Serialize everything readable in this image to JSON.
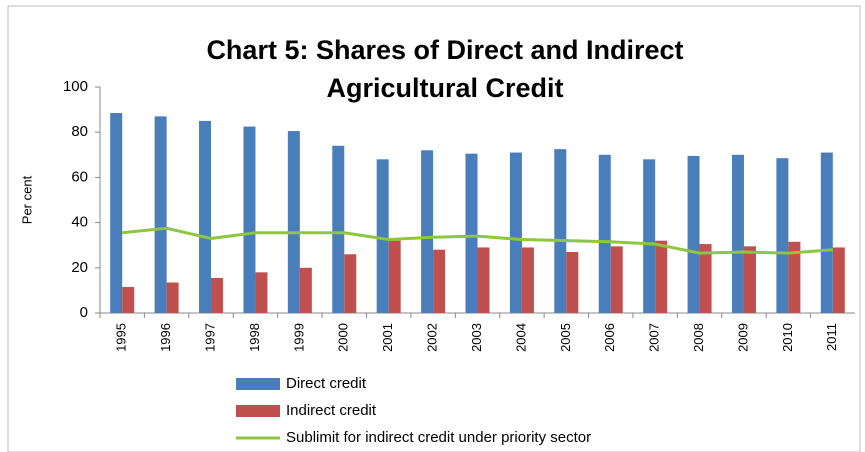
{
  "chart_data": {
    "type": "bar",
    "title_lines": [
      "Chart 5: Shares of Direct and Indirect",
      "Agricultural Credit"
    ],
    "y_label": "Per cent",
    "categories": [
      "1995",
      "1996",
      "1997",
      "1998",
      "1999",
      "2000",
      "2001",
      "2002",
      "2003",
      "2004",
      "2005",
      "2006",
      "2007",
      "2008",
      "2009",
      "2010",
      "2011"
    ],
    "series": [
      {
        "name": "Direct credit",
        "color": "#4a7ebb",
        "kind": "bar",
        "values": [
          88.5,
          87,
          85,
          82.5,
          80.5,
          74,
          68,
          72,
          70.5,
          71,
          72.5,
          70,
          68,
          69.5,
          70,
          68.5,
          71
        ]
      },
      {
        "name": "Indirect credit",
        "color": "#c0504d",
        "kind": "bar",
        "values": [
          11.5,
          13.5,
          15.5,
          18,
          20,
          26,
          32,
          28,
          29,
          29,
          27,
          29.5,
          32,
          30.5,
          29.5,
          31.5,
          29
        ]
      },
      {
        "name": "Sublimit for indirect credit under priority sector",
        "color": "#8dc63f",
        "kind": "line",
        "values": [
          35.5,
          37.5,
          33,
          35.5,
          35.5,
          35.5,
          32.5,
          33.5,
          34,
          32.5,
          32,
          31.5,
          30.5,
          26.5,
          27,
          26.5,
          28
        ]
      }
    ],
    "ylim": [
      0,
      100
    ],
    "yticks": [
      0,
      20,
      40,
      60,
      80,
      100
    ],
    "grid": false
  }
}
